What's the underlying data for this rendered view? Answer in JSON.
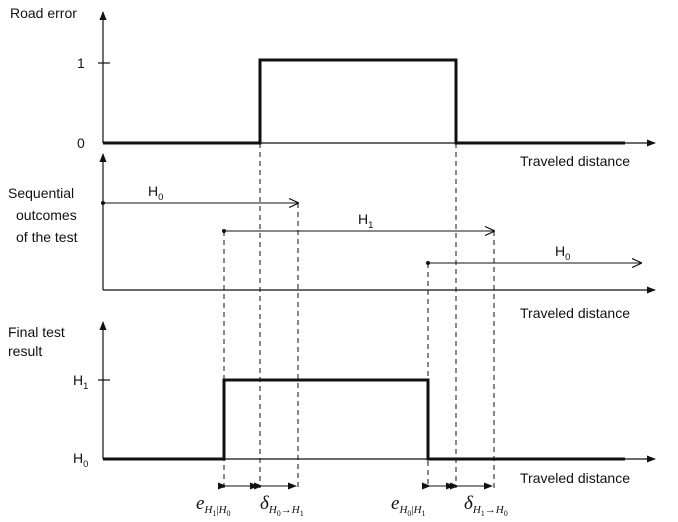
{
  "panels": {
    "road_error": {
      "ylabel": "Road error",
      "tick_high": "1",
      "tick_low": "0",
      "xlabel": "Traveled distance"
    },
    "sequential": {
      "ylabel_lines": [
        "Sequential",
        "outcomes",
        "of the test"
      ],
      "xlabel": "Traveled distance",
      "arrows": [
        {
          "base": "H",
          "sub": "0"
        },
        {
          "base": "H",
          "sub": "1"
        },
        {
          "base": "H",
          "sub": "0"
        }
      ]
    },
    "final": {
      "ylabel_lines": [
        "Final test",
        "result"
      ],
      "tick_high": {
        "base": "H",
        "sub": "1"
      },
      "tick_low": {
        "base": "H",
        "sub": "0"
      },
      "xlabel": "Traveled distance"
    }
  },
  "annotations": {
    "e_h1_h0": {
      "symbol": "e",
      "sub_a": "H",
      "sub_a_idx": "1",
      "bar": "|",
      "sub_b": "H",
      "sub_b_idx": "0"
    },
    "delta_h0_h1": {
      "symbol": "δ",
      "sub_a": "H",
      "sub_a_idx": "0",
      "arrow": "→",
      "sub_b": "H",
      "sub_b_idx": "1"
    },
    "e_h0_h1": {
      "symbol": "e",
      "sub_a": "H",
      "sub_a_idx": "0",
      "bar": "|",
      "sub_b": "H",
      "sub_b_idx": "1"
    },
    "delta_h1_h0": {
      "symbol": "δ",
      "sub_a": "H",
      "sub_a_idx": "1",
      "arrow": "→",
      "sub_b": "H",
      "sub_b_idx": "0"
    }
  }
}
